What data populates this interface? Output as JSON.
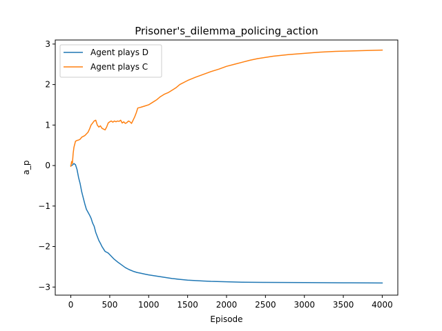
{
  "chart_data": {
    "type": "line",
    "title": "Prisoner's_dilemma_policing_action",
    "xlabel": "Episode",
    "ylabel": "a_p",
    "xlim": [
      -200,
      4200
    ],
    "ylim": [
      -3.2,
      3.1
    ],
    "xticks": [
      0,
      500,
      1000,
      1500,
      2000,
      2500,
      3000,
      3500,
      4000
    ],
    "yticks": [
      -3,
      -2,
      -1,
      0,
      1,
      2,
      3
    ],
    "xtick_labels": [
      "0",
      "500",
      "1000",
      "1500",
      "2000",
      "2500",
      "3000",
      "3500",
      "4000"
    ],
    "ytick_labels": [
      "−3",
      "−2",
      "−1",
      "0",
      "1",
      "2",
      "3"
    ],
    "grid": false,
    "legend": "upper-left",
    "series": [
      {
        "name": "Agent plays D",
        "color": "#1f77b4",
        "x": [
          0,
          20,
          40,
          60,
          80,
          100,
          120,
          140,
          160,
          180,
          200,
          220,
          240,
          260,
          280,
          300,
          320,
          340,
          360,
          380,
          400,
          420,
          440,
          460,
          480,
          500,
          550,
          600,
          650,
          700,
          750,
          800,
          850,
          900,
          950,
          1000,
          1100,
          1200,
          1300,
          1400,
          1500,
          1600,
          1700,
          1800,
          2000,
          2200,
          2500,
          3000,
          3500,
          4000
        ],
        "y": [
          0.0,
          0.01,
          0.05,
          0.02,
          -0.1,
          -0.3,
          -0.45,
          -0.65,
          -0.8,
          -0.95,
          -1.08,
          -1.15,
          -1.22,
          -1.3,
          -1.42,
          -1.5,
          -1.65,
          -1.75,
          -1.85,
          -1.92,
          -2.0,
          -2.06,
          -2.12,
          -2.14,
          -2.16,
          -2.2,
          -2.3,
          -2.38,
          -2.45,
          -2.52,
          -2.57,
          -2.61,
          -2.64,
          -2.66,
          -2.68,
          -2.7,
          -2.73,
          -2.76,
          -2.79,
          -2.81,
          -2.83,
          -2.84,
          -2.85,
          -2.86,
          -2.87,
          -2.88,
          -2.885,
          -2.89,
          -2.895,
          -2.9
        ]
      },
      {
        "name": "Agent plays C",
        "color": "#ff7f0e",
        "x": [
          0,
          10,
          20,
          30,
          40,
          60,
          80,
          100,
          120,
          140,
          160,
          180,
          200,
          220,
          240,
          260,
          280,
          300,
          320,
          340,
          360,
          380,
          400,
          420,
          440,
          460,
          480,
          500,
          520,
          540,
          560,
          580,
          600,
          620,
          640,
          660,
          680,
          700,
          720,
          740,
          760,
          780,
          800,
          820,
          840,
          860,
          880,
          900,
          950,
          1000,
          1050,
          1100,
          1150,
          1200,
          1250,
          1300,
          1350,
          1400,
          1500,
          1600,
          1700,
          1800,
          1900,
          2000,
          2100,
          2200,
          2300,
          2400,
          2500,
          2600,
          2800,
          3000,
          3200,
          3400,
          3600,
          3800,
          4000
        ],
        "y": [
          -0.02,
          0.1,
          0.05,
          0.3,
          0.45,
          0.6,
          0.62,
          0.63,
          0.65,
          0.7,
          0.72,
          0.74,
          0.78,
          0.82,
          0.9,
          1.0,
          1.05,
          1.1,
          1.12,
          1.0,
          0.95,
          0.98,
          0.92,
          0.9,
          0.88,
          0.95,
          1.05,
          1.08,
          1.1,
          1.07,
          1.1,
          1.08,
          1.1,
          1.09,
          1.12,
          1.05,
          1.08,
          1.04,
          1.06,
          1.1,
          1.08,
          1.04,
          1.12,
          1.2,
          1.3,
          1.42,
          1.43,
          1.44,
          1.47,
          1.5,
          1.56,
          1.62,
          1.7,
          1.76,
          1.8,
          1.86,
          1.92,
          2.0,
          2.1,
          2.18,
          2.25,
          2.32,
          2.38,
          2.45,
          2.5,
          2.55,
          2.6,
          2.64,
          2.67,
          2.7,
          2.74,
          2.77,
          2.8,
          2.82,
          2.83,
          2.84,
          2.85
        ]
      }
    ]
  }
}
